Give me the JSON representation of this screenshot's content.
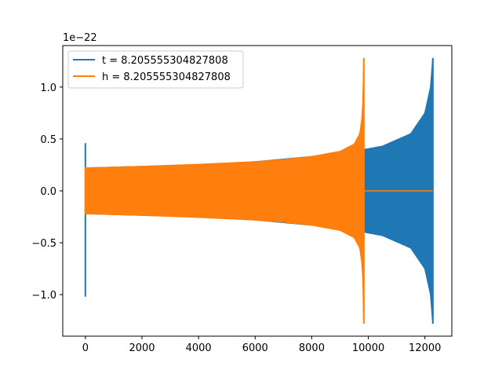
{
  "chart_data": {
    "type": "line",
    "title": "",
    "xlabel": "",
    "ylabel": "",
    "xlim": [
      -800,
      12950
    ],
    "ylim": [
      -1.4,
      1.4
    ],
    "y_offset_label": "1e−22",
    "x_ticks": [
      0,
      2000,
      4000,
      6000,
      8000,
      10000,
      12000
    ],
    "y_ticks": [
      -1.0,
      -0.5,
      0.0,
      0.5,
      1.0
    ],
    "x_tick_labels": [
      "0",
      "2000",
      "4000",
      "6000",
      "8000",
      "10000",
      "12000"
    ],
    "y_tick_labels": [
      "−1.0",
      "−0.5",
      "0.0",
      "0.5",
      "1.0"
    ],
    "grid": false,
    "legend_position": "upper-left",
    "series": [
      {
        "name": "t = 8.205555304827808",
        "color": "#1f77b4",
        "start_spike": {
          "x": 0,
          "max": 0.46,
          "min": -1.02
        },
        "envelope": [
          [
            0,
            0.22
          ],
          [
            2000,
            0.235
          ],
          [
            4000,
            0.25
          ],
          [
            6000,
            0.28
          ],
          [
            8000,
            0.33
          ],
          [
            9500,
            0.38
          ],
          [
            10500,
            0.43
          ],
          [
            11500,
            0.55
          ],
          [
            12000,
            0.75
          ],
          [
            12200,
            1.0
          ],
          [
            12280,
            1.28
          ]
        ],
        "end_x": 12280,
        "flat_after_end": false
      },
      {
        "name": "h = 8.205555304827808",
        "color": "#ff7f0e",
        "start_spike": {
          "x": 0,
          "max": 0.23,
          "min": -0.22
        },
        "envelope": [
          [
            0,
            0.22
          ],
          [
            2000,
            0.235
          ],
          [
            4000,
            0.255
          ],
          [
            6000,
            0.28
          ],
          [
            7000,
            0.3
          ],
          [
            8000,
            0.33
          ],
          [
            9000,
            0.38
          ],
          [
            9500,
            0.45
          ],
          [
            9700,
            0.55
          ],
          [
            9800,
            0.75
          ],
          [
            9840,
            1.28
          ]
        ],
        "end_x": 9840,
        "flat_after_end": true,
        "flat_until_x": 12280
      }
    ]
  }
}
